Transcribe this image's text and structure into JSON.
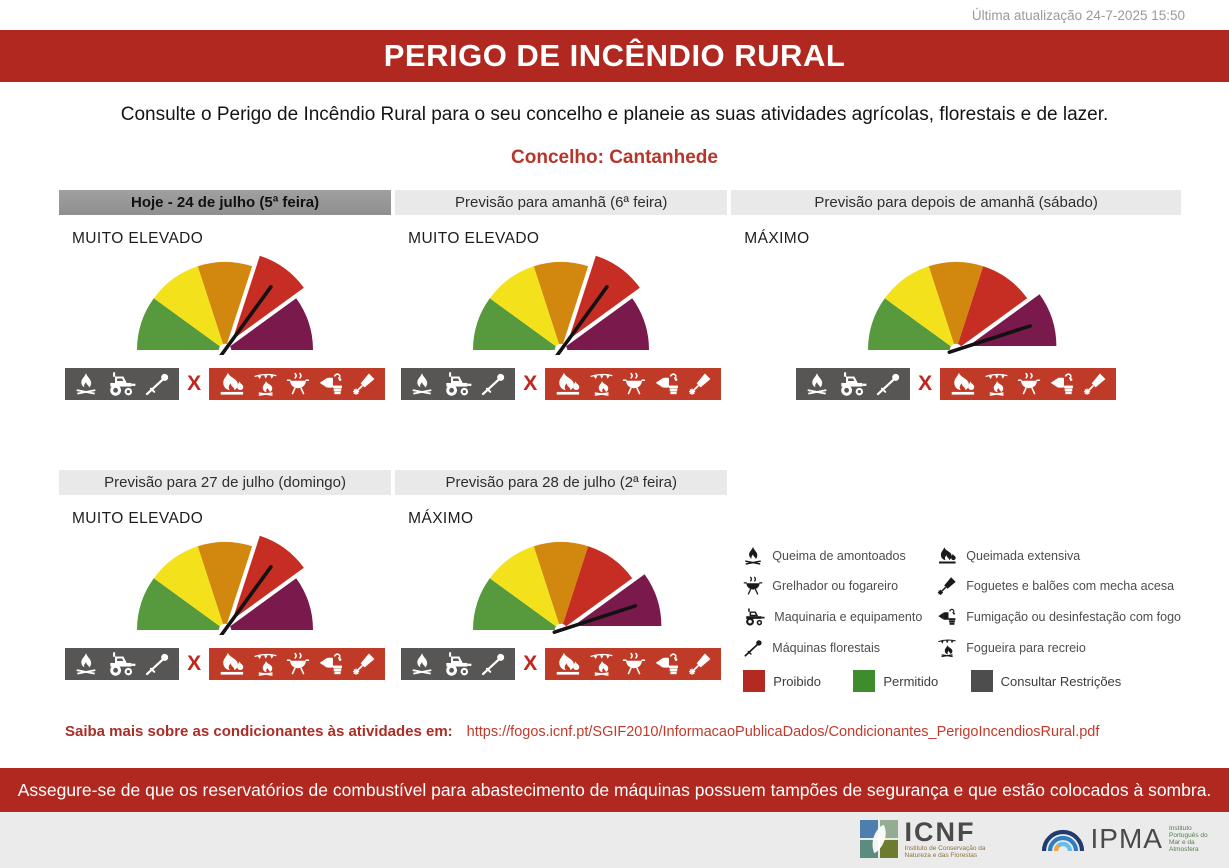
{
  "meta": {
    "last_update": "Última atualização 24-7-2025 15:50"
  },
  "header": {
    "title": "PERIGO DE INCÊNDIO RURAL"
  },
  "intro": "Consulte o Perigo de Incêndio Rural para o seu concelho e planeie as suas atividades agrícolas, florestais e de lazer.",
  "concelho": "Concelho: Cantanhede",
  "panels": [
    {
      "header": "Hoje - 24 de julho (5ª feira)",
      "highlight": true,
      "level": "MUITO ELEVADO"
    },
    {
      "header": "Previsão para amanhã (6ª feira)",
      "highlight": false,
      "level": "MUITO ELEVADO"
    },
    {
      "header": "Previsão para depois de amanhã (sábado)",
      "highlight": false,
      "level": "MÁXIMO"
    },
    {
      "header": "Previsão para 27 de julho (domingo)",
      "highlight": false,
      "level": "MUITO ELEVADO"
    },
    {
      "header": "Previsão para 28 de julho (2ª feira)",
      "highlight": false,
      "level": "MÁXIMO"
    }
  ],
  "gauge": {
    "segment_colors": [
      "#579a3e",
      "#f3e11c",
      "#d2870f",
      "#c62d23",
      "#7a1a4c"
    ],
    "levels": {
      "MUITO ELEVADO": 3,
      "MÁXIMO": 4
    }
  },
  "restrictions": {
    "consult_icons": [
      "campfire-icon",
      "tractor-icon",
      "brushcutter-icon"
    ],
    "x_label": "X",
    "prohibited_icons": [
      "extensive-burn-icon",
      "bonfire-icon",
      "grill-icon",
      "fumigation-icon",
      "rocket-icon"
    ]
  },
  "legend": {
    "items": [
      {
        "icon": "campfire-icon",
        "label": "Queima de amontoados"
      },
      {
        "icon": "extensive-burn-icon",
        "label": "Queimada extensiva"
      },
      {
        "icon": "grill-icon",
        "label": "Grelhador ou fogareiro"
      },
      {
        "icon": "rocket-icon",
        "label": "Foguetes e balões com mecha acesa"
      },
      {
        "icon": "tractor-icon",
        "label": "Maquinaria e equipamento"
      },
      {
        "icon": "fumigation-icon",
        "label": "Fumigação ou desinfestação com fogo"
      },
      {
        "icon": "brushcutter-icon",
        "label": "Máquinas florestais"
      },
      {
        "icon": "bonfire-icon",
        "label": "Fogueira para recreio"
      }
    ],
    "statuses": [
      {
        "color": "#b22a21",
        "label": "Proibido"
      },
      {
        "color": "#3f8c2f",
        "label": "Permitido"
      },
      {
        "color": "#4d4d4d",
        "label": "Consultar Restrições"
      }
    ]
  },
  "more_info": {
    "label": "Saiba mais sobre as condicionantes às atividades em:",
    "url": "https://fogos.icnf.pt/SGIF2010/InformacaoPublicaDados/Condicionantes_PerigoIncendiosRural.pdf"
  },
  "notice": "Assegure-se de que os reservatórios de combustível para abastecimento de máquinas  possuem tampões de segurança e que estão colocados à sombra.",
  "footer": {
    "icnf": {
      "name": "ICNF",
      "subtitle": "Instituto de Conservação da Natureza e das Florestas"
    },
    "ipma": {
      "name": "IPMA",
      "subtitle": "Instituto Português do Mar e da Atmosfera"
    }
  }
}
